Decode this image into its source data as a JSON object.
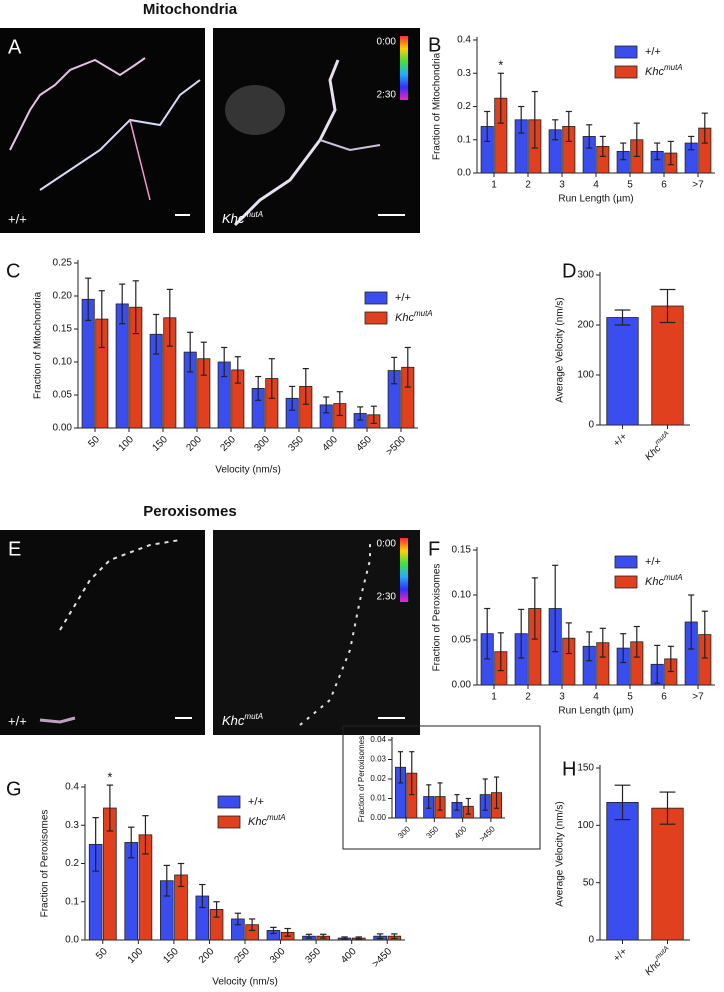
{
  "sections": [
    {
      "title": "Mitochondria",
      "panel": "A",
      "images": [
        {
          "label": "+/+"
        },
        {
          "label": "Khc",
          "label_superscript": "mutA",
          "colorbar": [
            "0:00",
            "2:30"
          ]
        }
      ]
    },
    {
      "title": "Peroxisomes",
      "panel": "E",
      "images": [
        {
          "label": "+/+"
        },
        {
          "label": "Khc",
          "label_superscript": "mutA",
          "colorbar": [
            "0:00",
            "2:30"
          ]
        }
      ]
    }
  ],
  "chart_data": [
    {
      "type": "bar",
      "panel": "B",
      "xlabel": "Run Length (µm)",
      "ylabel": "Fraction of Mitochondria",
      "categories": [
        "1",
        "2",
        "3",
        "4",
        "5",
        "6",
        ">7"
      ],
      "series": [
        {
          "name": "+/+",
          "color": "#3a4ef0",
          "values": [
            0.14,
            0.16,
            0.13,
            0.11,
            0.065,
            0.065,
            0.09
          ],
          "errors": [
            0.045,
            0.04,
            0.03,
            0.035,
            0.025,
            0.025,
            0.02
          ]
        },
        {
          "name": "Khc",
          "name_superscript": "mutA",
          "color": "#e0401e",
          "values": [
            0.225,
            0.16,
            0.14,
            0.08,
            0.1,
            0.06,
            0.135
          ],
          "errors": [
            0.075,
            0.085,
            0.045,
            0.03,
            0.05,
            0.035,
            0.045
          ]
        }
      ],
      "ylim": [
        0,
        0.4
      ],
      "yticks": [
        {
          "value": 0,
          "label": "0.0"
        },
        0.1,
        0.2,
        0.3,
        0.4
      ],
      "annotations": [
        {
          "text": "*",
          "category": 0,
          "series": 1
        }
      ]
    },
    {
      "type": "bar",
      "panel": "C",
      "xlabel": "Velocity (nm/s)",
      "ylabel": "Fraction of Mitochondria",
      "categories": [
        "50",
        "100",
        "150",
        "200",
        "250",
        "300",
        "350",
        "400",
        "450",
        ">500"
      ],
      "series": [
        {
          "name": "+/+",
          "color": "#3a4ef0",
          "values": [
            0.195,
            0.188,
            0.142,
            0.115,
            0.1,
            0.06,
            0.045,
            0.035,
            0.022,
            0.087
          ],
          "errors": [
            0.032,
            0.03,
            0.03,
            0.03,
            0.022,
            0.018,
            0.018,
            0.012,
            0.01,
            0.02
          ]
        },
        {
          "name": "Khc",
          "name_superscript": "mutA",
          "color": "#e0401e",
          "values": [
            0.165,
            0.183,
            0.167,
            0.105,
            0.088,
            0.075,
            0.063,
            0.037,
            0.02,
            0.092
          ],
          "errors": [
            0.043,
            0.04,
            0.043,
            0.025,
            0.02,
            0.03,
            0.027,
            0.018,
            0.013,
            0.03
          ]
        }
      ],
      "ylim": [
        0,
        0.25
      ],
      "yticks": [
        {
          "value": 0,
          "label": "0.00"
        },
        0.05,
        {
          "value": 0.1,
          "label": "0.10"
        },
        0.15,
        {
          "value": 0.2,
          "label": "0.20"
        },
        0.25
      ]
    },
    {
      "type": "bar",
      "panel": "D",
      "ylabel": "Average Velocity (nm/s)",
      "categories": [
        "+/+",
        "Khc"
      ],
      "category_superscripts": [
        null,
        "mutA"
      ],
      "series": [
        {
          "colors": [
            "#3a4ef0",
            "#e0401e"
          ],
          "values": [
            215,
            238
          ],
          "errors": [
            15,
            33
          ]
        }
      ],
      "ylim": [
        0,
        300
      ],
      "yticks": [
        0,
        100,
        200,
        300
      ]
    },
    {
      "type": "bar",
      "panel": "F",
      "xlabel": "Run Length (µm)",
      "ylabel": "Fraction of Peroxisomes",
      "categories": [
        "1",
        "2",
        "3",
        "4",
        "5",
        "6",
        ">7"
      ],
      "series": [
        {
          "name": "+/+",
          "color": "#3a4ef0",
          "values": [
            0.057,
            0.057,
            0.085,
            0.043,
            0.041,
            0.023,
            0.07
          ],
          "errors": [
            0.028,
            0.027,
            0.048,
            0.016,
            0.016,
            0.021,
            0.03
          ]
        },
        {
          "name": "Khc",
          "name_superscript": "mutA",
          "color": "#e0401e",
          "values": [
            0.037,
            0.085,
            0.052,
            0.047,
            0.048,
            0.029,
            0.056
          ],
          "errors": [
            0.021,
            0.034,
            0.017,
            0.016,
            0.017,
            0.014,
            0.026
          ]
        }
      ],
      "ylim": [
        0,
        0.15
      ],
      "yticks": [
        {
          "value": 0,
          "label": "0.00"
        },
        0.05,
        {
          "value": 0.1,
          "label": "0.10"
        },
        0.15
      ]
    },
    {
      "type": "bar",
      "panel": "G",
      "xlabel": "Velocity (nm/s)",
      "ylabel": "Fraction of Peroxisomes",
      "categories": [
        "50",
        "100",
        "150",
        "200",
        "250",
        "300",
        "350",
        "400",
        ">450"
      ],
      "series": [
        {
          "name": "+/+",
          "color": "#3a4ef0",
          "values": [
            0.25,
            0.255,
            0.155,
            0.115,
            0.055,
            0.025,
            0.01,
            0.005,
            0.01
          ],
          "errors": [
            0.07,
            0.04,
            0.04,
            0.03,
            0.015,
            0.008,
            0.005,
            0.003,
            0.006
          ]
        },
        {
          "name": "Khc",
          "name_superscript": "mutA",
          "color": "#e0401e",
          "values": [
            0.345,
            0.275,
            0.17,
            0.08,
            0.04,
            0.02,
            0.01,
            0.005,
            0.01
          ],
          "errors": [
            0.06,
            0.05,
            0.03,
            0.02,
            0.015,
            0.01,
            0.005,
            0.003,
            0.006
          ]
        }
      ],
      "ylim": [
        0,
        0.4
      ],
      "yticks": [
        {
          "value": 0,
          "label": "0.0"
        },
        0.1,
        0.2,
        0.3,
        0.4
      ],
      "annotations": [
        {
          "text": "*",
          "category": 0,
          "series": 1
        }
      ]
    },
    {
      "type": "bar",
      "ylabel": "Fraction of Peroxisomes",
      "categories": [
        "300",
        "350",
        "400",
        ">450"
      ],
      "series": [
        {
          "color": "#3a4ef0",
          "values": [
            0.026,
            0.011,
            0.008,
            0.012
          ],
          "errors": [
            0.008,
            0.006,
            0.004,
            0.008
          ]
        },
        {
          "color": "#e0401e",
          "values": [
            0.023,
            0.011,
            0.006,
            0.013
          ],
          "errors": [
            0.011,
            0.007,
            0.004,
            0.008
          ]
        }
      ],
      "ylim": [
        0,
        0.04
      ],
      "yticks": [
        {
          "value": 0,
          "label": "0.00"
        },
        0.01,
        0.02,
        0.03,
        0.04
      ]
    },
    {
      "type": "bar",
      "panel": "H",
      "ylabel": "Average Velocity (nm/s)",
      "categories": [
        "+/+",
        "Khc"
      ],
      "category_superscripts": [
        null,
        "mutA"
      ],
      "series": [
        {
          "colors": [
            "#3a4ef0",
            "#e0401e"
          ],
          "values": [
            120,
            115
          ],
          "errors": [
            15,
            14
          ]
        }
      ],
      "ylim": [
        0,
        150
      ],
      "yticks": [
        0,
        50,
        100,
        150
      ]
    }
  ]
}
